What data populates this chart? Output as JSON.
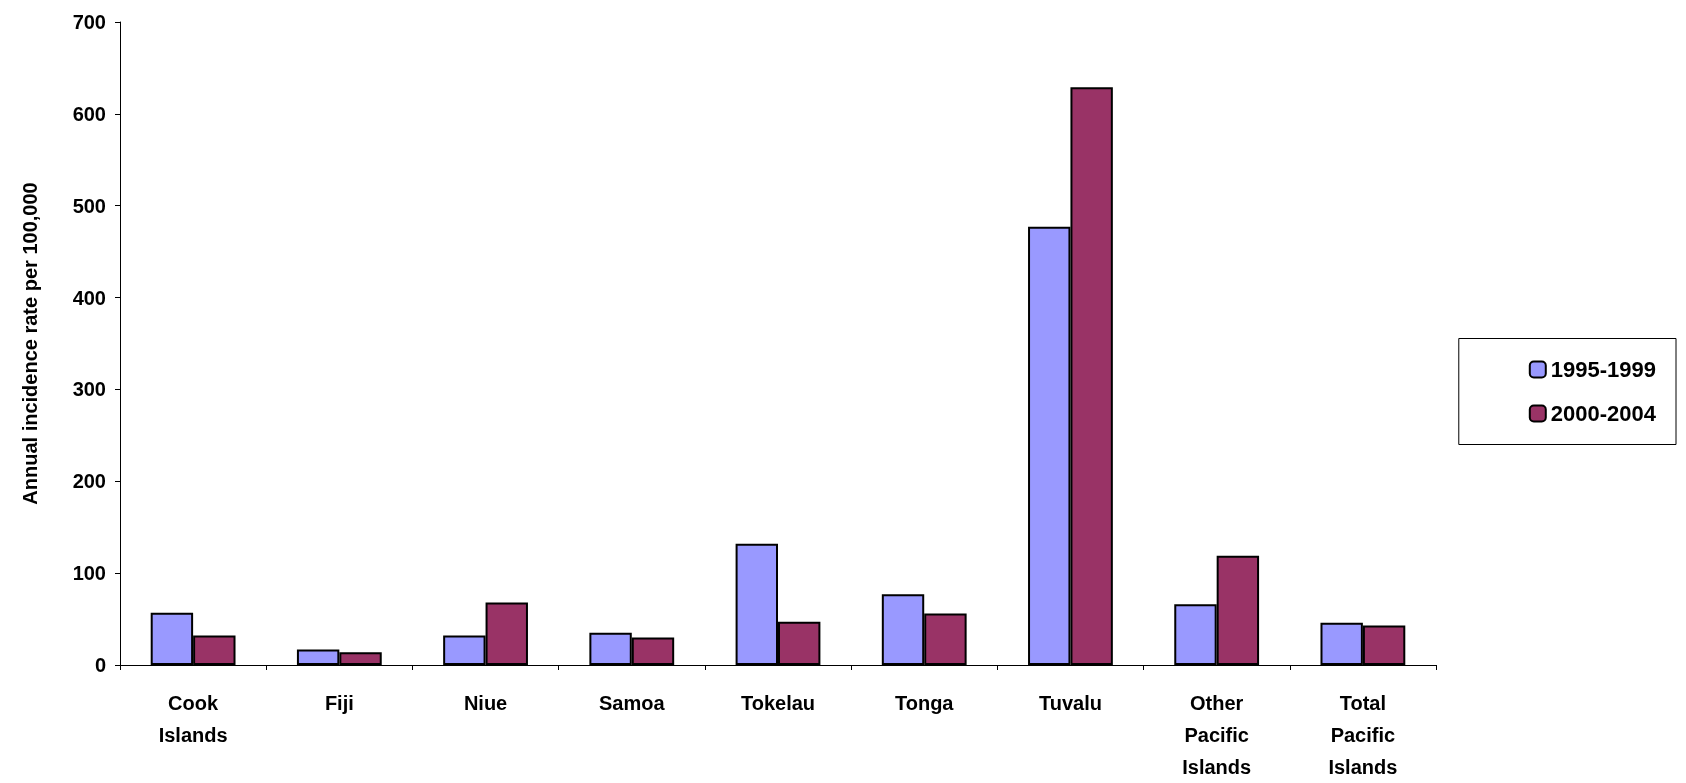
{
  "chart_data": {
    "type": "bar",
    "ylabel": "Annual incidence rate per 100,000",
    "categories": [
      "Cook\nIslands",
      "Fiji",
      "Niue",
      "Samoa",
      "Tokelau",
      "Tonga",
      "Tuvalu",
      "Other\nPacific\nIslands",
      "Total\nPacific\nIslands"
    ],
    "series": [
      {
        "name": "1995-1999",
        "color": "#9999ff",
        "values": [
          57,
          17,
          32,
          35,
          132,
          77,
          477,
          66,
          46
        ]
      },
      {
        "name": "2000-2004",
        "color": "#993366",
        "values": [
          32,
          14,
          68,
          30,
          47,
          56,
          629,
          119,
          43
        ]
      }
    ],
    "ylim": [
      0,
      700
    ],
    "yticks": [
      0,
      100,
      200,
      300,
      400,
      500,
      600,
      700
    ],
    "grid": false,
    "legend": "right"
  }
}
